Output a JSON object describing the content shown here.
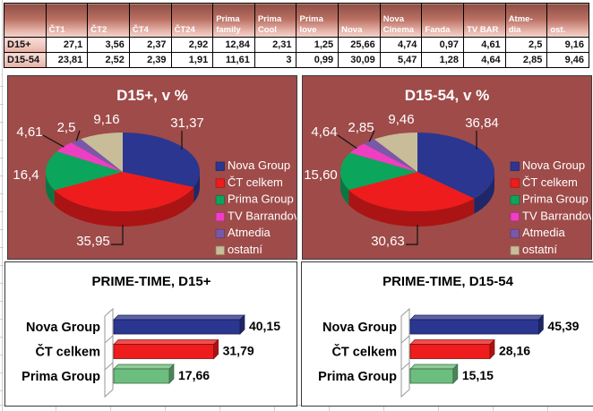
{
  "table": {
    "corner_label": "",
    "columns": [
      "ČT1",
      "ČT2",
      "ČT4",
      "ČT24",
      "Prima\nfamily",
      "Prima\nCool",
      "Prima\nlove",
      "Nova",
      "Nova\nCinema",
      "Fanda",
      "TV BAR",
      "Atme-\ndia",
      "ost."
    ],
    "rows": [
      {
        "label": "D15+",
        "values": [
          "27,1",
          "3,56",
          "2,37",
          "2,92",
          "12,84",
          "2,31",
          "1,25",
          "25,66",
          "4,74",
          "0,97",
          "4,61",
          "2,5",
          "9,16"
        ]
      },
      {
        "label": "D15-54",
        "values": [
          "23,81",
          "2,52",
          "2,39",
          "1,91",
          "11,61",
          "3",
          "0,99",
          "30,09",
          "5,47",
          "1,28",
          "4,64",
          "2,85",
          "9,46"
        ]
      }
    ]
  },
  "chart_data": [
    {
      "id": "pie-d15plus",
      "type": "pie",
      "title": "D15+, v %",
      "legend_position": "right",
      "labels": [
        "Nova Group",
        "ČT celkem",
        "Prima Group",
        "TV Barrandov",
        "Atmedia",
        "ostatní"
      ],
      "values": [
        31.37,
        35.95,
        16.4,
        4.61,
        2.5,
        9.16
      ],
      "value_labels": [
        "31,37",
        "35,95",
        "16,4",
        "4,61",
        "2,5",
        "9,16"
      ],
      "colors": [
        "#2b3690",
        "#ee1c1c",
        "#0ca55c",
        "#ee3fc2",
        "#7a58a8",
        "#c9bc98"
      ],
      "background": "#9e4b49",
      "text_color": "#ffffff"
    },
    {
      "id": "pie-d15-54",
      "type": "pie",
      "title": "D15-54, v %",
      "legend_position": "right",
      "labels": [
        "Nova Group",
        "ČT celkem",
        "Prima Group",
        "TV Barrandov",
        "Atmedia",
        "ostatní"
      ],
      "values": [
        36.84,
        30.63,
        15.6,
        4.64,
        2.85,
        9.46
      ],
      "value_labels": [
        "36,84",
        "30,63",
        "15,60",
        "4,64",
        "2,85",
        "9,46"
      ],
      "colors": [
        "#2b3690",
        "#ee1c1c",
        "#0ca55c",
        "#ee3fc2",
        "#7a58a8",
        "#c9bc98"
      ],
      "background": "#9e4b49",
      "text_color": "#ffffff"
    },
    {
      "id": "bar-primetime-d15plus",
      "type": "bar",
      "orientation": "horizontal",
      "title": "PRIME-TIME, D15+",
      "categories": [
        "Nova Group",
        "ČT celkem",
        "Prima Group"
      ],
      "values": [
        40.15,
        31.79,
        17.66
      ],
      "value_labels": [
        "40,15",
        "31,79",
        "17,66"
      ],
      "colors": [
        "#2b3690",
        "#ee1c1c",
        "#6cbe7e"
      ],
      "xlim": [
        0,
        45
      ],
      "grid": false,
      "legend_position": "none",
      "background": "#ffffff",
      "text_color": "#000000"
    },
    {
      "id": "bar-primetime-d15-54",
      "type": "bar",
      "orientation": "horizontal",
      "title": "PRIME-TIME, D15-54",
      "categories": [
        "Nova Group",
        "ČT celkem",
        "Prima Group"
      ],
      "values": [
        45.39,
        28.16,
        15.15
      ],
      "value_labels": [
        "45,39",
        "28,16",
        "15,15"
      ],
      "colors": [
        "#2b3690",
        "#ee1c1c",
        "#6cbe7e"
      ],
      "xlim": [
        0,
        50
      ],
      "grid": false,
      "legend_position": "none",
      "background": "#ffffff",
      "text_color": "#000000"
    }
  ],
  "colors": {
    "panel_maroon": "#9e4b49",
    "table_header_top": "#8e4f46",
    "table_header_bottom": "#f3d4cd",
    "row_label_top": "#f7ddd8",
    "row_label_bottom": "#e7b0a6",
    "gridline": "#cfcfcf"
  }
}
